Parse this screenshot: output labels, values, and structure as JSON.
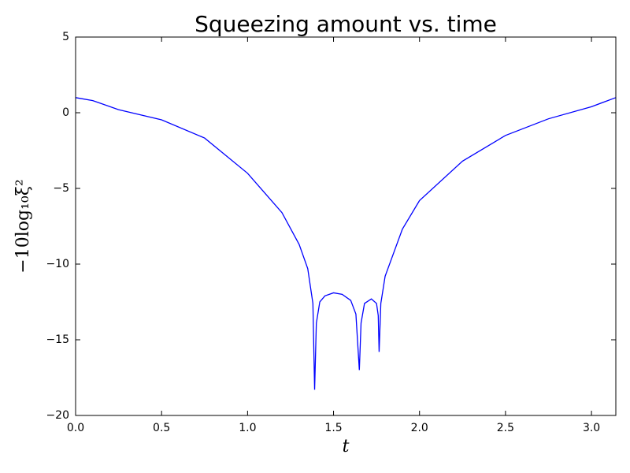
{
  "chart_data": {
    "type": "line",
    "title": "Squeezing amount vs. time",
    "x_label": "t",
    "y_label": "−10log₁₀ξ²",
    "x": [
      0,
      0.1,
      0.25,
      0.5,
      0.75,
      1.0,
      1.2,
      1.3,
      1.35,
      1.38,
      1.39,
      1.4,
      1.42,
      1.45,
      1.5,
      1.55,
      1.6,
      1.63,
      1.65,
      1.66,
      1.68,
      1.72,
      1.75,
      1.76,
      1.765,
      1.775,
      1.8,
      1.9,
      2.0,
      2.25,
      2.5,
      2.75,
      3.0,
      3.14159
    ],
    "series": [
      {
        "color": "#0000ff",
        "values": [
          1.0,
          0.8,
          0.2,
          -0.47,
          -1.67,
          -4.0,
          -6.6,
          -8.7,
          -10.3,
          -12.6,
          -18.3,
          -13.9,
          -12.5,
          -12.1,
          -11.9,
          -12.0,
          -12.4,
          -13.3,
          -17.0,
          -13.9,
          -12.6,
          -12.3,
          -12.6,
          -13.4,
          -15.8,
          -12.6,
          -10.8,
          -7.7,
          -5.8,
          -3.2,
          -1.5,
          -0.4,
          0.4,
          1.0
        ]
      }
    ],
    "xlim": [
      0,
      3.14159
    ],
    "xticks": [
      {
        "value": 0,
        "label": "0.0"
      },
      0.5,
      {
        "value": 1,
        "label": "1.0"
      },
      1.5,
      {
        "value": 2,
        "label": "2.0"
      },
      2.5,
      {
        "value": 3,
        "label": "3.0"
      }
    ],
    "ylim": [
      -20,
      5
    ],
    "yticks": [
      {
        "value": -20,
        "label": "−20"
      },
      {
        "value": -15,
        "label": "−15"
      },
      {
        "value": -10,
        "label": "−10"
      },
      {
        "value": -5,
        "label": "−5"
      },
      0,
      5
    ],
    "grid": false
  }
}
